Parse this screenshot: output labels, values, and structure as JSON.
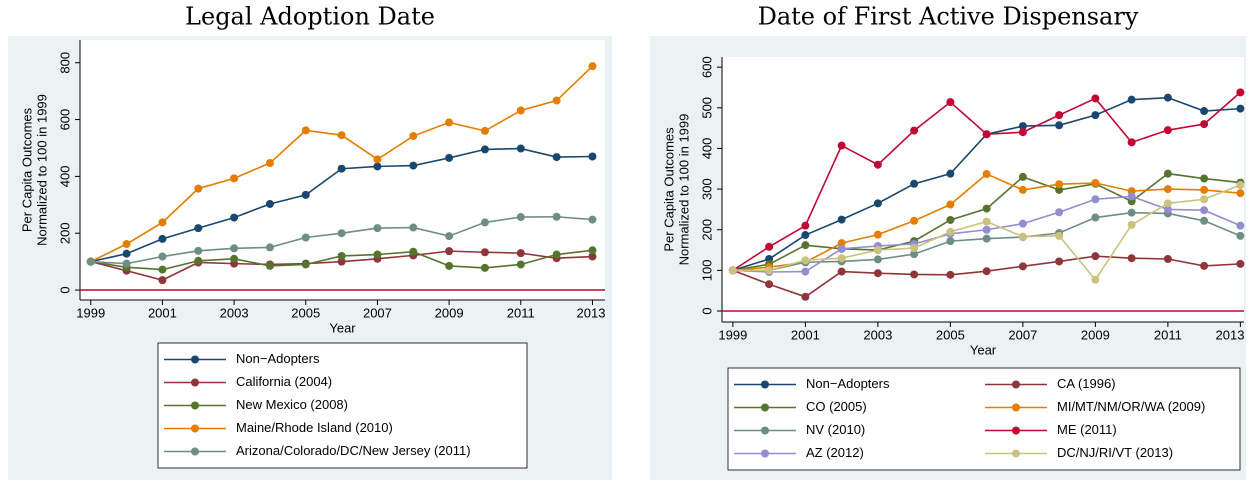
{
  "chart_data": [
    {
      "type": "line",
      "title": "Legal Adoption Date",
      "xlabel": "Year",
      "ylabel": [
        "Per Capita Outcomes",
        "Normalized to 100 in 1999"
      ],
      "x": [
        1999,
        2000,
        2001,
        2002,
        2003,
        2004,
        2005,
        2006,
        2007,
        2008,
        2009,
        2010,
        2011,
        2012,
        2013
      ],
      "xlim": [
        1998.7,
        2013.35
      ],
      "xticks": [
        1999,
        2001,
        2003,
        2005,
        2007,
        2009,
        2011,
        2013
      ],
      "ylim": [
        -35,
        880
      ],
      "yticks": [
        0,
        200,
        400,
        600,
        800
      ],
      "reference_line": 0,
      "reference_color": "#c10534",
      "grid": false,
      "legend_columns": 1,
      "series": [
        {
          "name": "Non−Adopters",
          "color": "#1a476f",
          "values": [
            100,
            128,
            180,
            218,
            255,
            303,
            335,
            427,
            435,
            438,
            465,
            495,
            498,
            468,
            470
          ]
        },
        {
          "name": "California (2004)",
          "color": "#90353b",
          "values": [
            100,
            68,
            35,
            97,
            93,
            90,
            93,
            100,
            110,
            122,
            137,
            133,
            130,
            112,
            118
          ]
        },
        {
          "name": "New Mexico (2008)",
          "color": "#55752f",
          "values": [
            100,
            80,
            72,
            103,
            110,
            85,
            90,
            120,
            125,
            135,
            85,
            78,
            90,
            125,
            140
          ]
        },
        {
          "name": "Maine/Rhode Island (2010)",
          "color": "#e37e00",
          "values": [
            100,
            162,
            238,
            357,
            393,
            447,
            562,
            545,
            460,
            542,
            590,
            560,
            632,
            667,
            788
          ]
        },
        {
          "name": "Arizona/Colorado/DC/New Jersey (2011)",
          "color": "#6e8e84",
          "values": [
            100,
            93,
            118,
            138,
            147,
            150,
            185,
            200,
            218,
            220,
            190,
            238,
            257,
            258,
            248
          ]
        }
      ]
    },
    {
      "type": "line",
      "title": "Date of First Active Dispensary",
      "xlabel": "Year",
      "ylabel": [
        "Per Capita Outcomes",
        "Normalized to 100 in 1999"
      ],
      "x": [
        1999,
        2000,
        2001,
        2002,
        2003,
        2004,
        2005,
        2006,
        2007,
        2008,
        2009,
        2010,
        2011,
        2012,
        2013
      ],
      "xlim": [
        1998.7,
        2013.1
      ],
      "xticks": [
        1999,
        2001,
        2003,
        2005,
        2007,
        2009,
        2011,
        2013
      ],
      "ylim": [
        -27,
        625
      ],
      "yticks": [
        0,
        100,
        200,
        300,
        400,
        500,
        600
      ],
      "reference_line": 0,
      "reference_color": "#c10534",
      "grid": false,
      "legend_columns": 2,
      "series": [
        {
          "name": "Non−Adopters",
          "color": "#1a476f",
          "values": [
            100,
            128,
            187,
            225,
            265,
            313,
            338,
            435,
            455,
            457,
            482,
            520,
            525,
            492,
            498
          ]
        },
        {
          "name": "CA (1996)",
          "color": "#90353b",
          "values": [
            100,
            66,
            35,
            97,
            93,
            90,
            89,
            98,
            110,
            122,
            135,
            130,
            128,
            111,
            116
          ]
        },
        {
          "name": "CO (2005)",
          "color": "#55752f",
          "values": [
            100,
            115,
            162,
            153,
            150,
            172,
            224,
            252,
            330,
            298,
            313,
            270,
            338,
            326,
            316
          ]
        },
        {
          "name": "MI/MT/NM/OR/WA (2009)",
          "color": "#e37e00",
          "values": [
            100,
            108,
            120,
            167,
            188,
            222,
            262,
            337,
            298,
            312,
            315,
            295,
            300,
            298,
            290
          ]
        },
        {
          "name": "NV (2010)",
          "color": "#6e8e84",
          "values": [
            100,
            100,
            120,
            122,
            127,
            140,
            172,
            178,
            182,
            192,
            230,
            242,
            240,
            222,
            185
          ]
        },
        {
          "name": "ME (2011)",
          "color": "#c10534",
          "values": [
            100,
            158,
            210,
            407,
            360,
            444,
            514,
            435,
            440,
            482,
            523,
            415,
            445,
            460,
            538
          ]
        },
        {
          "name": "AZ (2012)",
          "color": "#938dd2",
          "values": [
            100,
            96,
            97,
            153,
            160,
            165,
            190,
            200,
            215,
            243,
            275,
            282,
            250,
            248,
            210
          ]
        },
        {
          "name": "DC/NJ/RI/VT (2013)",
          "color": "#cac27e",
          "values": [
            100,
            100,
            125,
            130,
            150,
            155,
            195,
            220,
            183,
            185,
            77,
            212,
            265,
            275,
            310
          ]
        }
      ]
    }
  ]
}
